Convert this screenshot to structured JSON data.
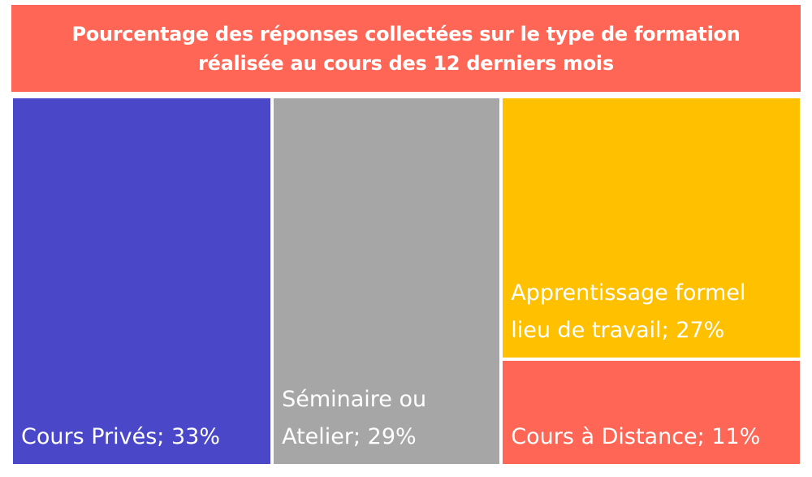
{
  "title": {
    "line1": "Pourcentage des réponses collectées sur le type de formation",
    "line2": "réalisée au cours des 12 derniers mois"
  },
  "colors": {
    "title_bg": "#ff6655",
    "cours_prives": "#4a48c8",
    "seminaire": "#a6a6a6",
    "apprentissage": "#ffc000",
    "distance": "#ff6655"
  },
  "chart_data": {
    "type": "treemap",
    "title": "Pourcentage des réponses collectées sur le type de formation réalisée au cours des 12 derniers mois",
    "items": [
      {
        "label": "Cours Privés; 33%",
        "label_lines": [
          "Cours Privés; 33%"
        ],
        "category": "Cours Privés",
        "value": 33,
        "color": "#4a48c8"
      },
      {
        "label": "Séminaire ou Atelier; 29%",
        "label_lines": [
          "Séminaire ou",
          "Atelier; 29%"
        ],
        "category": "Séminaire ou Atelier",
        "value": 29,
        "color": "#a6a6a6"
      },
      {
        "label": "Apprentissage formel lieu de travail; 27%",
        "label_lines": [
          "Apprentissage formel",
          "lieu de travail; 27%"
        ],
        "category": "Apprentissage formel lieu de travail",
        "value": 27,
        "color": "#ffc000"
      },
      {
        "label": "Cours à Distance; 11%",
        "label_lines": [
          "Cours à Distance; 11%"
        ],
        "category": "Cours à Distance",
        "value": 11,
        "color": "#ff6655"
      }
    ]
  }
}
